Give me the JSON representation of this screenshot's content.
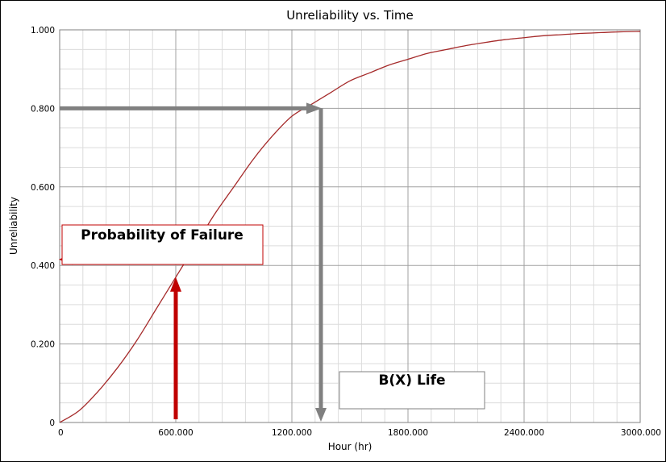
{
  "chart_data": {
    "type": "line",
    "title": "Unreliability vs. Time",
    "xlabel": "Hour (hr)",
    "ylabel": "Unreliability",
    "xlim": [
      0,
      3000
    ],
    "ylim": [
      0,
      1
    ],
    "x_ticks": [
      "0",
      "600.000",
      "1200.000",
      "1800.000",
      "2400.000",
      "3000.000"
    ],
    "y_ticks": [
      "0",
      "0.200",
      "0.400",
      "0.600",
      "0.800",
      "1.000"
    ],
    "grid": true,
    "series": [
      {
        "color": "#a52a2a",
        "x": [
          0,
          100,
          200,
          300,
          400,
          500,
          600,
          700,
          800,
          900,
          1000,
          1100,
          1200,
          1300,
          1400,
          1500,
          1600,
          1700,
          1800,
          1900,
          2000,
          2100,
          2200,
          2300,
          2400,
          2500,
          2600,
          2700,
          2800,
          2900,
          3000
        ],
        "y": [
          0,
          0.03,
          0.08,
          0.14,
          0.21,
          0.29,
          0.37,
          0.45,
          0.53,
          0.6,
          0.67,
          0.73,
          0.78,
          0.81,
          0.84,
          0.87,
          0.89,
          0.91,
          0.925,
          0.94,
          0.95,
          0.96,
          0.968,
          0.975,
          0.98,
          0.985,
          0.988,
          0.991,
          0.993,
          0.995,
          0.996
        ]
      }
    ],
    "annotations": [
      {
        "label": "Probability of Failure",
        "color": "#c00000",
        "x": 600,
        "y": 0.37
      },
      {
        "label": "B(X) Life",
        "color": "#808080",
        "x": 1350,
        "y": 0.8
      }
    ]
  }
}
